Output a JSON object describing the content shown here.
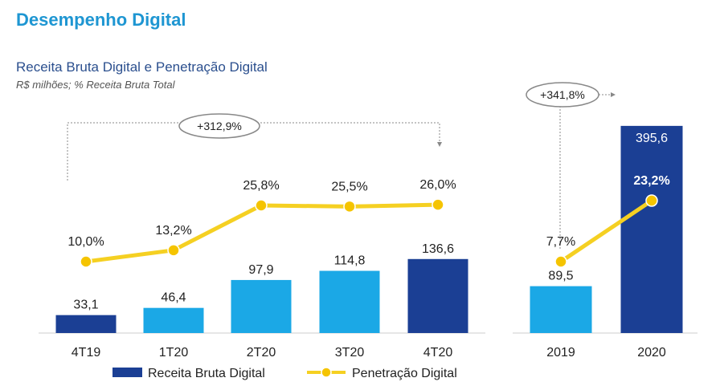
{
  "header": {
    "title": "Desempenho Digital",
    "chart_title": "Receita Bruta Digital e Penetração Digital",
    "subtitle": "R$ milhões; % Receita Bruta Total"
  },
  "colors": {
    "title": "#1e96d2",
    "light_bar": "#1ba8e6",
    "dark_bar": "#1b3f94",
    "line": "#f5d022",
    "marker": "#f5c400"
  },
  "chart_data": [
    {
      "type": "bar",
      "categories": [
        "4T19",
        "1T20",
        "2T20",
        "3T20",
        "4T20"
      ],
      "series": [
        {
          "name": "Receita Bruta Digital",
          "values": [
            33.1,
            46.4,
            97.9,
            114.8,
            136.6
          ],
          "value_labels": [
            "33,1",
            "46,4",
            "97,9",
            "114,8",
            "136,6"
          ]
        },
        {
          "name": "Penetração Digital",
          "values": [
            10.0,
            13.2,
            25.8,
            25.5,
            26.0
          ],
          "value_labels": [
            "10,0%",
            "13,2%",
            "25,8%",
            "25,5%",
            "26,0%"
          ]
        }
      ],
      "bar_shades": [
        "dark",
        "light",
        "light",
        "light",
        "dark"
      ],
      "annotation": "+312,9%"
    },
    {
      "type": "bar",
      "categories": [
        "2019",
        "2020"
      ],
      "series": [
        {
          "name": "Receita Bruta Digital",
          "values": [
            89.5,
            395.6
          ],
          "value_labels": [
            "89,5",
            "395,6"
          ]
        },
        {
          "name": "Penetração Digital",
          "values": [
            7.7,
            23.2
          ],
          "value_labels": [
            "7,7%",
            "23,2%"
          ]
        }
      ],
      "bar_shades": [
        "light",
        "dark"
      ],
      "annotation": "+341,8%"
    }
  ],
  "legend": {
    "bar_label": "Receita Bruta Digital",
    "line_label": "Penetração Digital"
  }
}
